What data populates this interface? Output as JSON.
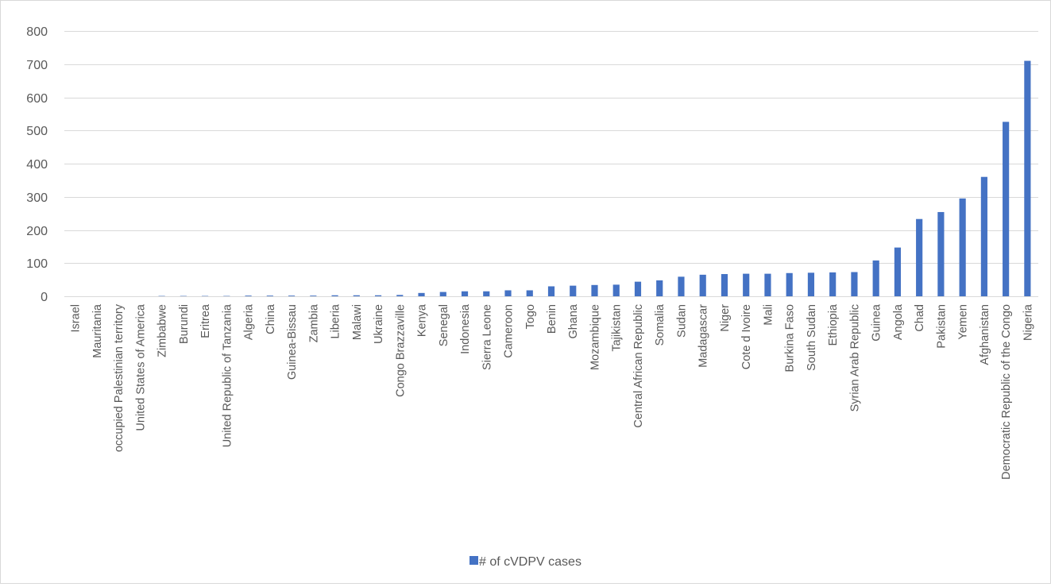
{
  "chart_data": {
    "type": "bar",
    "title": "",
    "xlabel": "",
    "ylabel": "",
    "ylim": [
      0,
      800
    ],
    "yticks": [
      0,
      100,
      200,
      300,
      400,
      500,
      600,
      700,
      800
    ],
    "grid": true,
    "legend_position": "bottom",
    "categories": [
      "Israel",
      "Mauritania",
      "occupied Palestinian territory",
      "United States of America",
      "Zimbabwe",
      "Burundi",
      "Eritrea",
      "United Republic of Tanzania",
      "Algeria",
      "China",
      "Guinea-Bissau",
      "Zambia",
      "Liberia",
      "Malawi",
      "Ukraine",
      "Congo Brazzaville",
      "Kenya",
      "Senegal",
      "Indonesia",
      "Sierra Leone",
      "Cameroon",
      "Togo",
      "Benin",
      "Ghana",
      "Mozambique",
      "Tajikistan",
      "Central African Republic",
      "Somalia",
      "Sudan",
      "Madagascar",
      "Niger",
      "Cote d Ivoire",
      "Mali",
      "Burkina Faso",
      "South Sudan",
      "Ethiopia",
      "Syrian Arab Republic",
      "Guinea",
      "Angola",
      "Chad",
      "Pakistan",
      "Yemen",
      "Afghanistan",
      "Democratic Republic of the Congo",
      "Nigeria"
    ],
    "series": [
      {
        "name": "# of cVDPV cases",
        "color": "#4472C4",
        "values": [
          0,
          0,
          0,
          0,
          1,
          1,
          1,
          1,
          2,
          2,
          2,
          2,
          3,
          3,
          3,
          4,
          10,
          13,
          15,
          15,
          18,
          18,
          30,
          32,
          34,
          35,
          44,
          48,
          59,
          65,
          67,
          68,
          68,
          70,
          71,
          72,
          73,
          108,
          147,
          233,
          254,
          295,
          360,
          526,
          710
        ]
      }
    ]
  }
}
